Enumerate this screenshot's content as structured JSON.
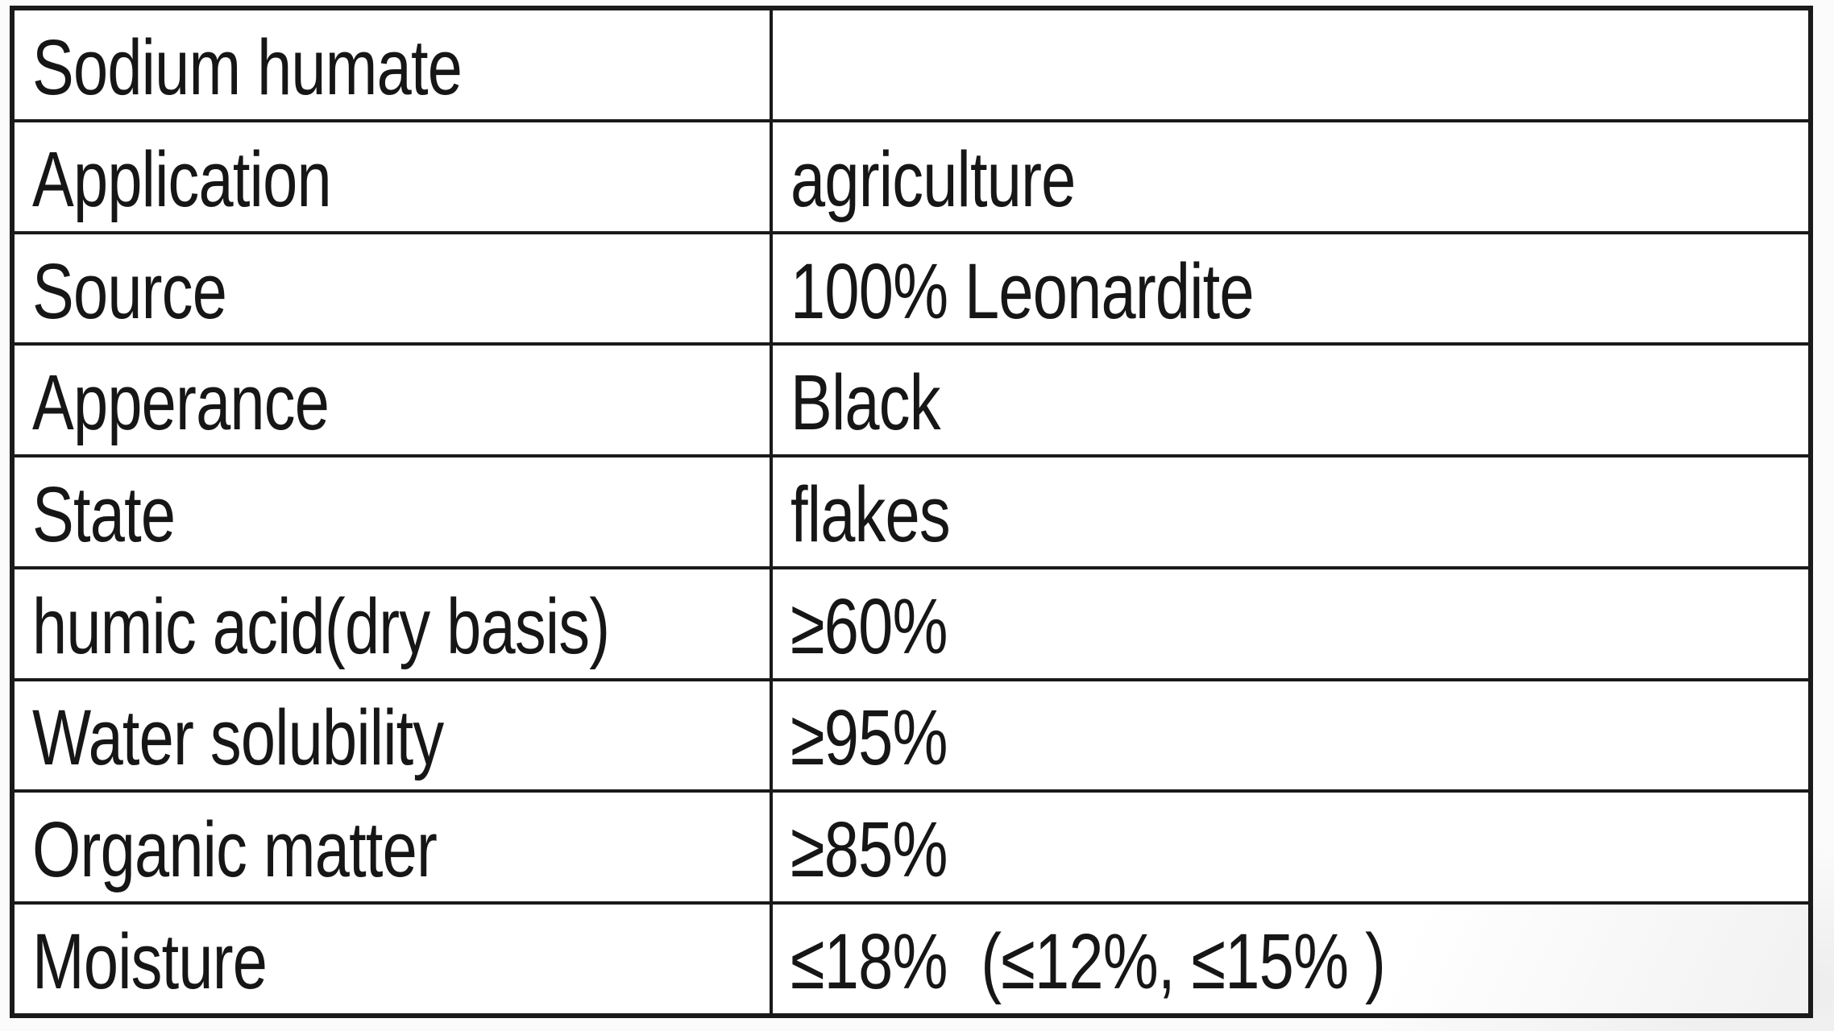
{
  "theme": {
    "border_color": "#1a1a1a",
    "text_color": "#161616",
    "cell_background": "#ffffff",
    "page_background": "#fbfbfb"
  },
  "table": {
    "rows": [
      {
        "label": "Sodium humate",
        "value": ""
      },
      {
        "label": "Application",
        "value": "agriculture"
      },
      {
        "label": "Source",
        "value": "100% Leonardite"
      },
      {
        "label": "Apperance",
        "value": "Black"
      },
      {
        "label": "State",
        "value": "flakes"
      },
      {
        "label": "humic acid(dry basis)",
        "value": "≥60%"
      },
      {
        "label": "Water solubility",
        "value": "≥95%"
      },
      {
        "label": "Organic matter",
        "value": "≥85%"
      },
      {
        "label": "Moisture",
        "value": "≤18%  (≤12%, ≤15% )"
      }
    ]
  }
}
